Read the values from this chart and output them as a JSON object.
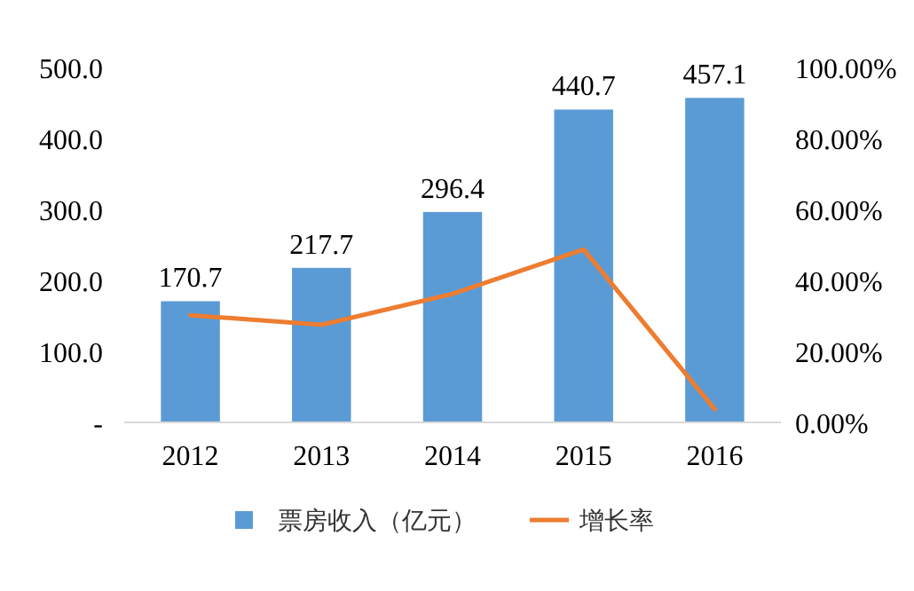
{
  "chart_data": {
    "type": "bar",
    "categories": [
      "2012",
      "2013",
      "2014",
      "2015",
      "2016"
    ],
    "series": [
      {
        "name": "票房收入（亿元）",
        "color": "#5b9bd5",
        "values": [
          170.7,
          217.7,
          296.4,
          440.7,
          457.1
        ]
      },
      {
        "name": "增长率",
        "type": "line",
        "axis": "y2",
        "color": "#ed7d31",
        "values": [
          30.2,
          27.5,
          36.2,
          48.7,
          3.7
        ]
      }
    ],
    "ylim": [
      0,
      500
    ],
    "yticks": [
      {
        "value": 0,
        "label": "-"
      },
      {
        "value": 100,
        "label": "100.0"
      },
      {
        "value": 200,
        "label": "200.0"
      },
      {
        "value": 300,
        "label": "300.0"
      },
      {
        "value": 400,
        "label": "400.0"
      },
      {
        "value": 500,
        "label": "500.0"
      }
    ],
    "y2lim": [
      0,
      100
    ],
    "y2ticks": [
      {
        "value": 0,
        "label": "0.00%"
      },
      {
        "value": 20,
        "label": "20.00%"
      },
      {
        "value": 40,
        "label": "40.00%"
      },
      {
        "value": 60,
        "label": "60.00%"
      },
      {
        "value": 80,
        "label": "80.00%"
      },
      {
        "value": 100,
        "label": "100.00%"
      }
    ],
    "value_labels": [
      "170.7",
      "217.7",
      "296.4",
      "440.7",
      "457.1"
    ],
    "legend": "bottom",
    "grid": false,
    "marker": "none",
    "line_style": "solid"
  }
}
